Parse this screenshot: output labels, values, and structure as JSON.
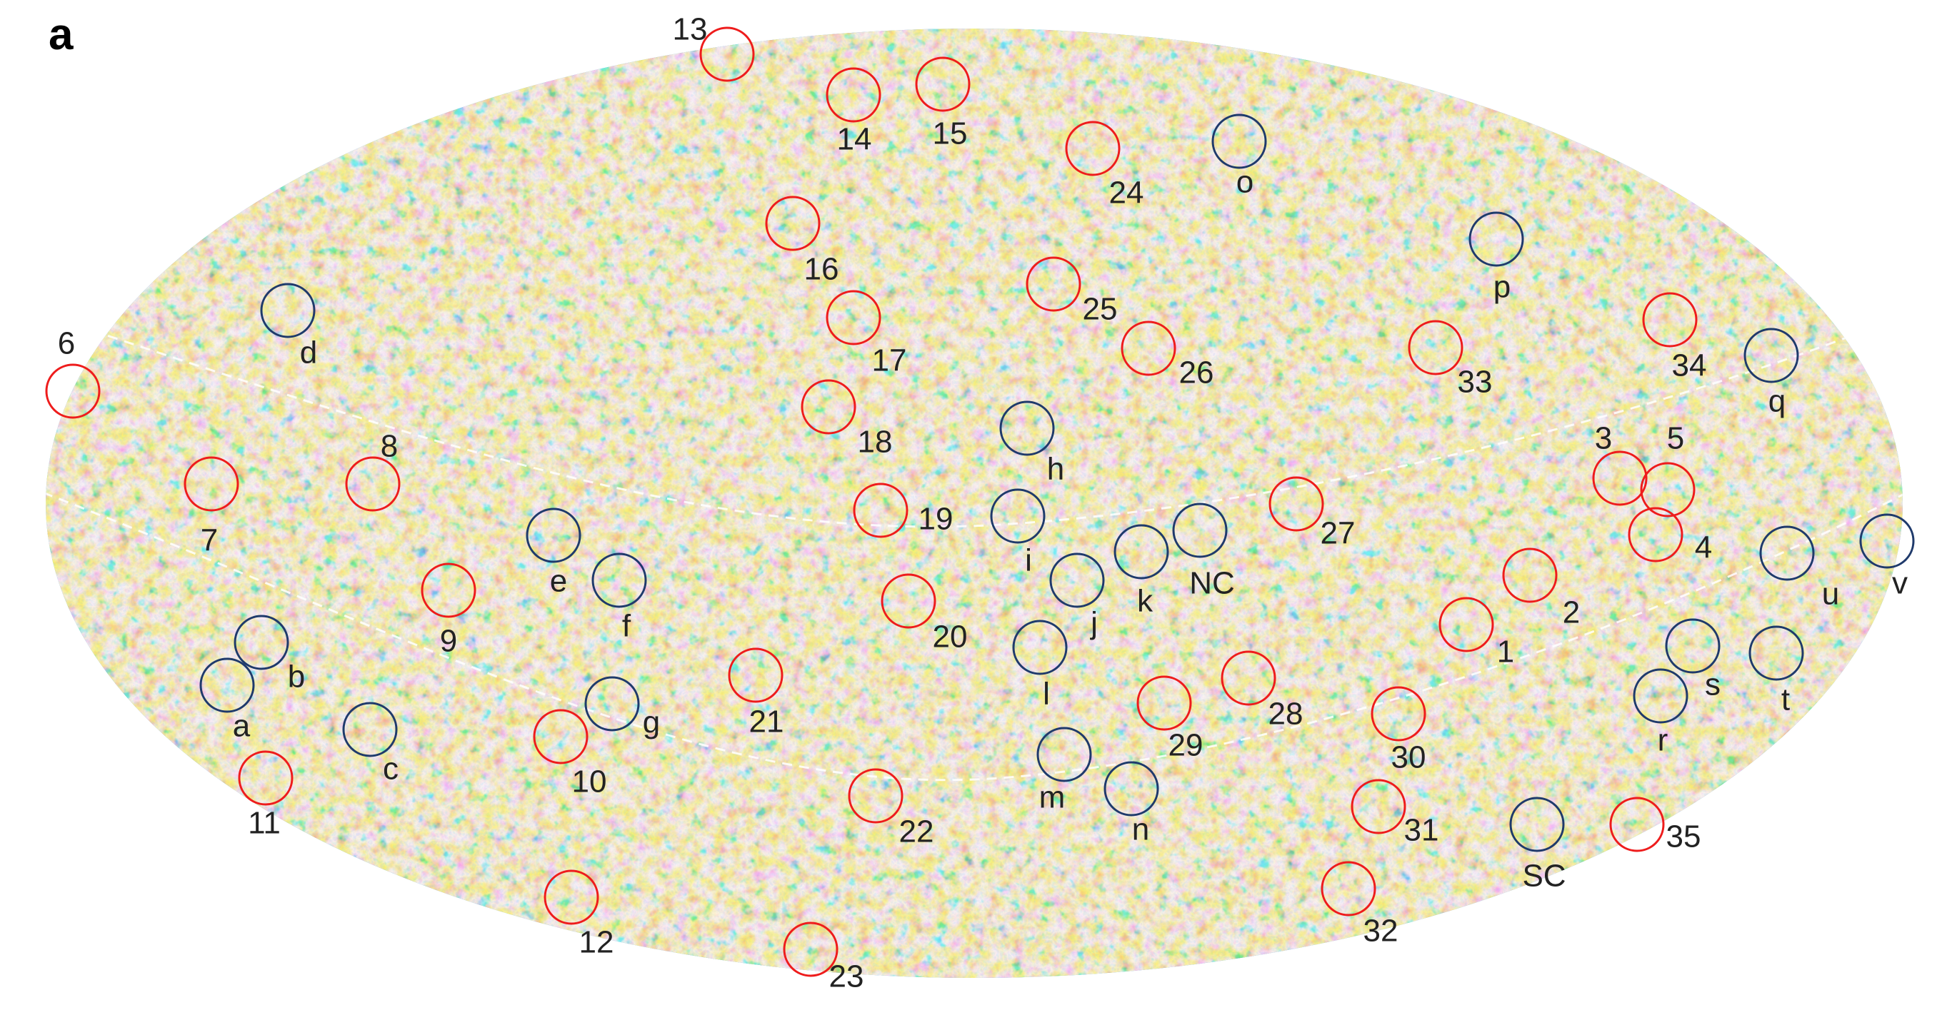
{
  "panel_label": "a",
  "colors": {
    "hot_circle": "#ee1c1c",
    "cold_circle": "#1f3a6b",
    "label": "#222222",
    "map_base": "#3a9fe0",
    "map_warm": "#f0a040",
    "map_hot": "#e8502a",
    "map_cold": "#1f56e8",
    "map_pale": "#f3e6b8",
    "grid_line": "#ffffff"
  },
  "hot_spots": [
    {
      "label": "1"
    },
    {
      "label": "2"
    },
    {
      "label": "3"
    },
    {
      "label": "4"
    },
    {
      "label": "5"
    },
    {
      "label": "6"
    },
    {
      "label": "7"
    },
    {
      "label": "8"
    },
    {
      "label": "9"
    },
    {
      "label": "10"
    },
    {
      "label": "11"
    },
    {
      "label": "12"
    },
    {
      "label": "13"
    },
    {
      "label": "14"
    },
    {
      "label": "15"
    },
    {
      "label": "16"
    },
    {
      "label": "17"
    },
    {
      "label": "18"
    },
    {
      "label": "19"
    },
    {
      "label": "20"
    },
    {
      "label": "21"
    },
    {
      "label": "22"
    },
    {
      "label": "23"
    },
    {
      "label": "24"
    },
    {
      "label": "25"
    },
    {
      "label": "26"
    },
    {
      "label": "27"
    },
    {
      "label": "28"
    },
    {
      "label": "29"
    },
    {
      "label": "30"
    },
    {
      "label": "31"
    },
    {
      "label": "32"
    },
    {
      "label": "33"
    },
    {
      "label": "34"
    },
    {
      "label": "35"
    }
  ],
  "cold_spots": [
    {
      "label": "a"
    },
    {
      "label": "b"
    },
    {
      "label": "c"
    },
    {
      "label": "d"
    },
    {
      "label": "e"
    },
    {
      "label": "f"
    },
    {
      "label": "g"
    },
    {
      "label": "h"
    },
    {
      "label": "i"
    },
    {
      "label": "j"
    },
    {
      "label": "k"
    },
    {
      "label": "l"
    },
    {
      "label": "m"
    },
    {
      "label": "n"
    },
    {
      "label": "o"
    },
    {
      "label": "p"
    },
    {
      "label": "q"
    },
    {
      "label": "r"
    },
    {
      "label": "s"
    },
    {
      "label": "t"
    },
    {
      "label": "u"
    },
    {
      "label": "v"
    },
    {
      "label": "NC"
    },
    {
      "label": "SC"
    }
  ]
}
